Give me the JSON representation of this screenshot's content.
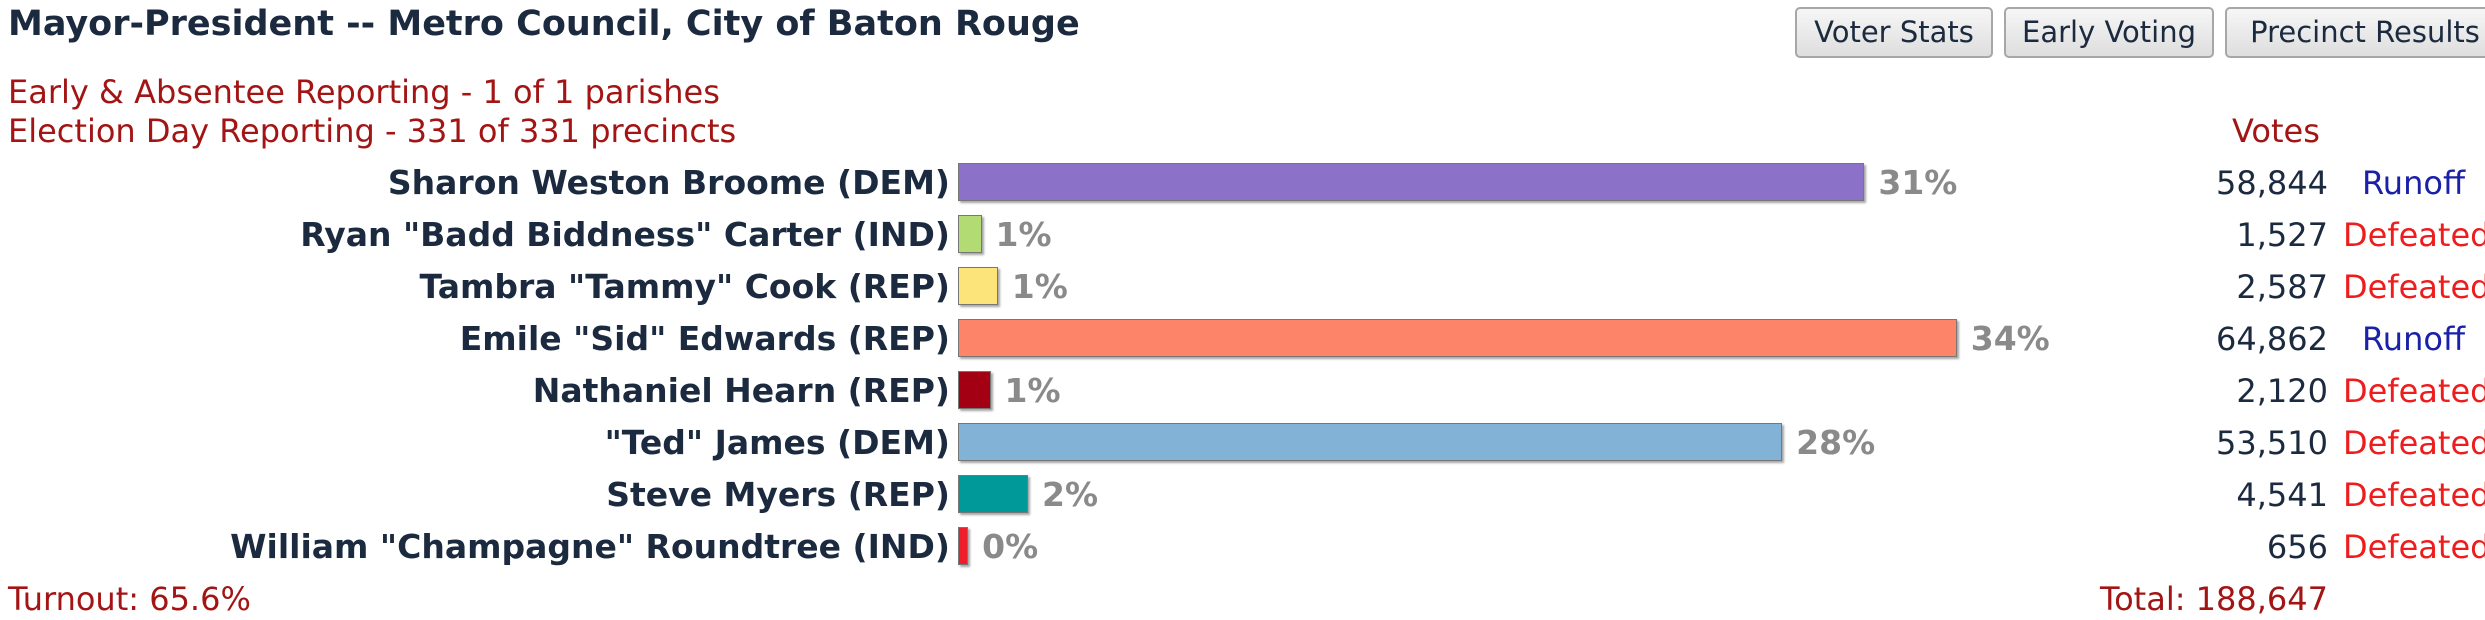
{
  "header": {
    "title": "Mayor-President -- Metro Council, City of Baton Rouge",
    "buttons": {
      "voter_stats": "Voter Stats",
      "early_voting": "Early Voting",
      "precinct_results": "Precinct Results"
    }
  },
  "status": {
    "early": "Early & Absentee Reporting - 1 of 1 parishes",
    "election_day": "Election Day Reporting - 331 of 331 precincts"
  },
  "votes_header": "Votes",
  "candidates": [
    {
      "name": "Sharon Weston Broome (DEM)",
      "percent_label": "31%",
      "percent": 31.2,
      "votes": "58,844",
      "result": "Runoff",
      "color": "#8b71c8"
    },
    {
      "name": "Ryan \"Badd Biddness\" Carter (IND)",
      "percent_label": "1%",
      "percent": 0.81,
      "votes": "1,527",
      "result": "Defeated",
      "color": "#b3db74"
    },
    {
      "name": "Tambra \"Tammy\" Cook (REP)",
      "percent_label": "1%",
      "percent": 1.37,
      "votes": "2,587",
      "result": "Defeated",
      "color": "#fde47a"
    },
    {
      "name": "Emile \"Sid\" Edwards (REP)",
      "percent_label": "34%",
      "percent": 34.38,
      "votes": "64,862",
      "result": "Runoff",
      "color": "#fd8469"
    },
    {
      "name": "Nathaniel Hearn (REP)",
      "percent_label": "1%",
      "percent": 1.12,
      "votes": "2,120",
      "result": "Defeated",
      "color": "#a30013"
    },
    {
      "name": "\"Ted\" James (DEM)",
      "percent_label": "28%",
      "percent": 28.37,
      "votes": "53,510",
      "result": "Defeated",
      "color": "#82b2d6"
    },
    {
      "name": "Steve Myers (REP)",
      "percent_label": "2%",
      "percent": 2.41,
      "votes": "4,541",
      "result": "Defeated",
      "color": "#00999a"
    },
    {
      "name": "William \"Champagne\" Roundtree (IND)",
      "percent_label": "0%",
      "percent": 0.35,
      "votes": "656",
      "result": "Defeated",
      "color": "#ee1f2b"
    }
  ],
  "result_colors": {
    "Runoff": "#1a20a8",
    "Defeated": "#ee1c1c"
  },
  "footer": {
    "turnout": "Turnout: 65.6%",
    "total": "Total: 188,647"
  }
}
